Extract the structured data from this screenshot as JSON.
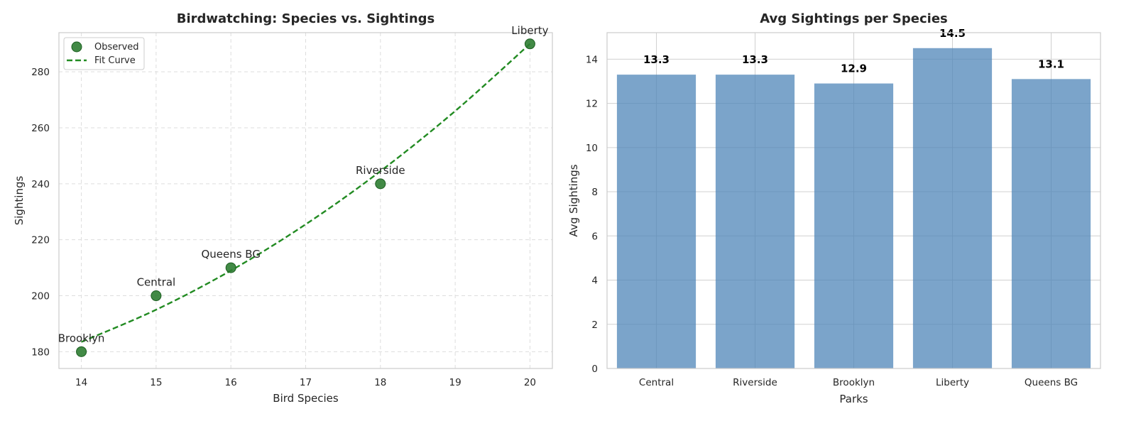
{
  "chart_data": [
    {
      "type": "scatter",
      "title": "Birdwatching: Species vs. Sightings",
      "xlabel": "Bird Species",
      "ylabel": "Sightings",
      "xlim": [
        13.7,
        20.3
      ],
      "ylim": [
        174,
        294
      ],
      "xticks": [
        14,
        15,
        16,
        17,
        18,
        19,
        20
      ],
      "yticks": [
        180,
        200,
        220,
        240,
        260,
        280
      ],
      "grid": true,
      "grid_style": "dashed",
      "legend_position": "top-left",
      "series": [
        {
          "name": "Observed",
          "kind": "points",
          "color": "#2e7d32",
          "points": [
            {
              "x": 14,
              "y": 180,
              "label": "Brooklyn"
            },
            {
              "x": 15,
              "y": 200,
              "label": "Central"
            },
            {
              "x": 16,
              "y": 210,
              "label": "Queens BG"
            },
            {
              "x": 18,
              "y": 240,
              "label": "Riverside"
            },
            {
              "x": 20,
              "y": 290,
              "label": "Liberty"
            }
          ]
        },
        {
          "name": "Fit Curve",
          "kind": "line",
          "style": "dashed",
          "color": "#228b22",
          "points": [
            {
              "x": 14,
              "y": 183.5
            },
            {
              "x": 15,
              "y": 195
            },
            {
              "x": 16,
              "y": 209
            },
            {
              "x": 17,
              "y": 225.5
            },
            {
              "x": 18,
              "y": 244.5
            },
            {
              "x": 19,
              "y": 266
            },
            {
              "x": 20,
              "y": 290
            }
          ]
        }
      ]
    },
    {
      "type": "bar",
      "title": "Avg Sightings per Species",
      "xlabel": "Parks",
      "ylabel": "Avg Sightings",
      "categories": [
        "Central",
        "Riverside",
        "Brooklyn",
        "Liberty",
        "Queens BG"
      ],
      "values": [
        13.3,
        13.3,
        12.9,
        14.5,
        13.1
      ],
      "value_labels": [
        "13.3",
        "13.3",
        "12.9",
        "14.5",
        "13.1"
      ],
      "ylim": [
        0,
        15.2
      ],
      "yticks": [
        0,
        2,
        4,
        6,
        8,
        10,
        12,
        14
      ],
      "grid": true,
      "bar_color": "#4f86b8"
    }
  ]
}
